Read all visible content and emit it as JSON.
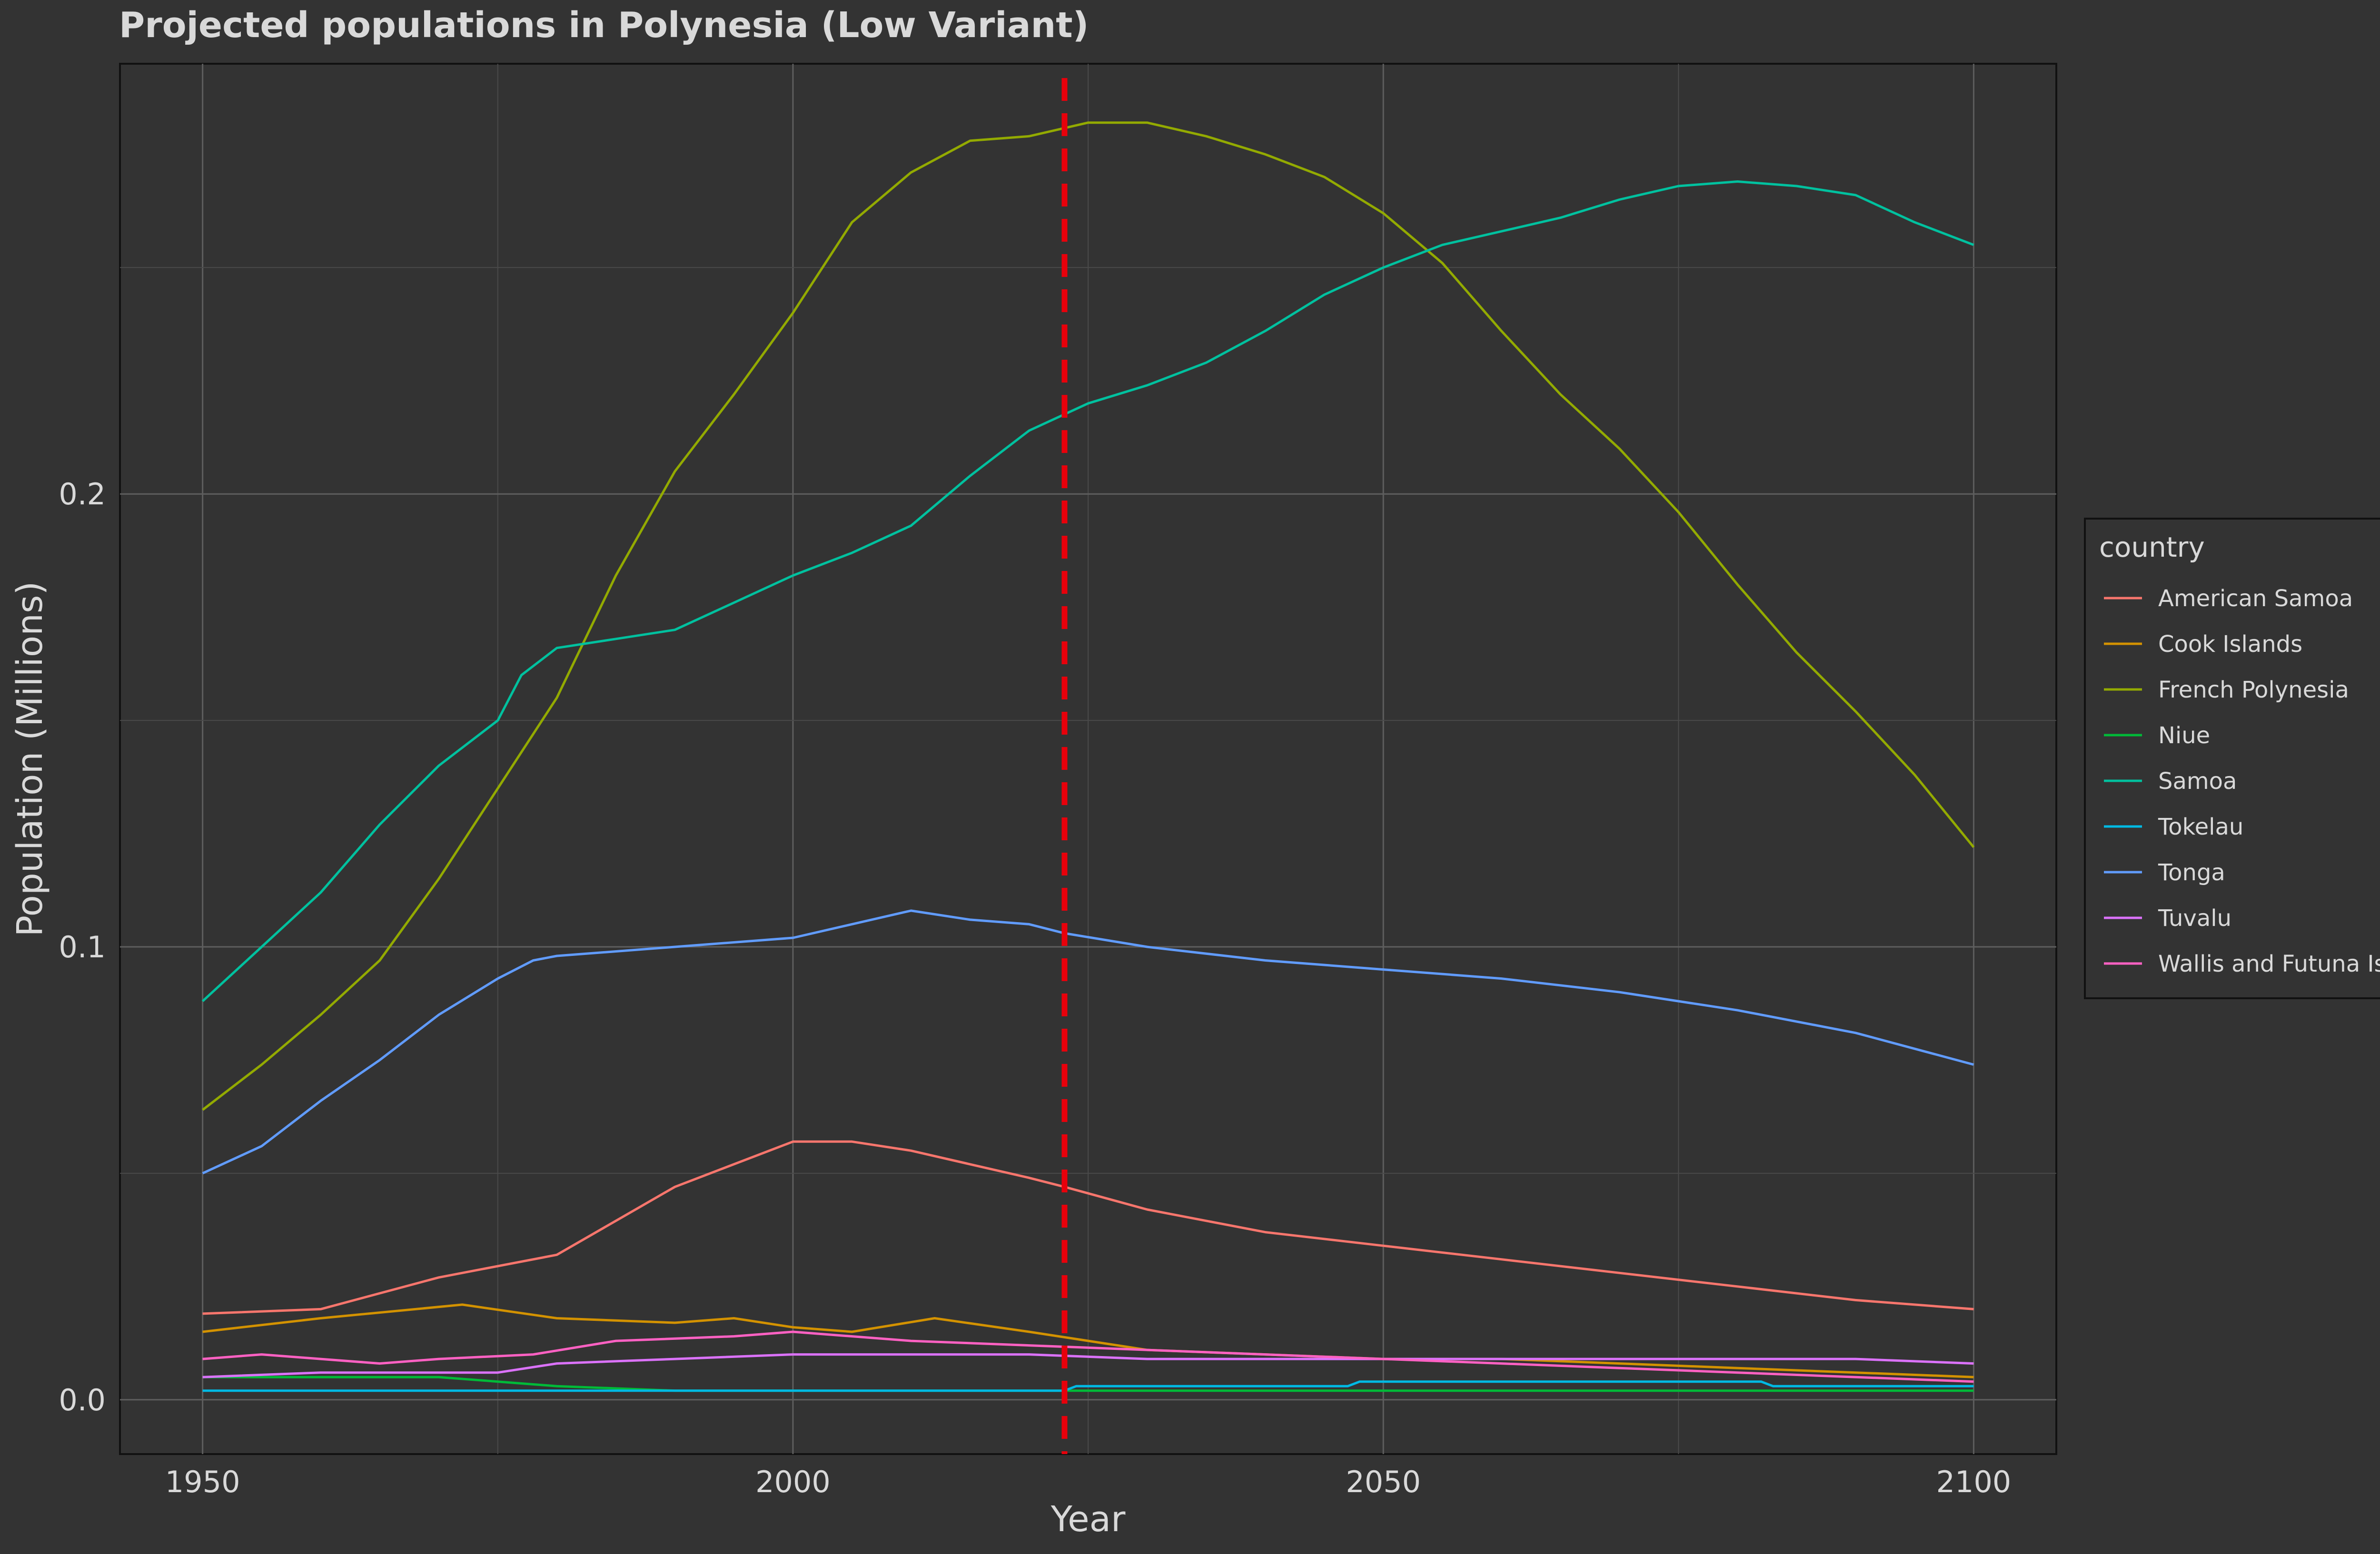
{
  "chart_data": {
    "type": "line",
    "title": "Projected populations in Polynesia (Low Variant)",
    "xlabel": "Year",
    "ylabel": "Population (Millions)",
    "xlim": [
      1943,
      2107
    ],
    "ylim": [
      -0.012,
      0.295
    ],
    "x_ticks": [
      1950,
      2000,
      2050,
      2100
    ],
    "y_ticks": [
      0.0,
      0.1,
      0.2
    ],
    "grid": true,
    "legend": {
      "title": "country",
      "placement": "right"
    },
    "reference_line": {
      "x": 2023,
      "style": "dashed",
      "color": "#e8000b"
    },
    "series": [
      {
        "name": "American Samoa",
        "color": "#f8766d",
        "points": [
          [
            1950,
            0.019
          ],
          [
            1960,
            0.02
          ],
          [
            1970,
            0.027
          ],
          [
            1980,
            0.032
          ],
          [
            1990,
            0.047
          ],
          [
            2000,
            0.057
          ],
          [
            2005,
            0.057
          ],
          [
            2010,
            0.055
          ],
          [
            2015,
            0.052
          ],
          [
            2020,
            0.049
          ],
          [
            2023,
            0.047
          ],
          [
            2030,
            0.042
          ],
          [
            2040,
            0.037
          ],
          [
            2050,
            0.034
          ],
          [
            2060,
            0.031
          ],
          [
            2070,
            0.028
          ],
          [
            2080,
            0.025
          ],
          [
            2090,
            0.022
          ],
          [
            2100,
            0.02
          ]
        ]
      },
      {
        "name": "Cook Islands",
        "color": "#d39200",
        "points": [
          [
            1950,
            0.015
          ],
          [
            1960,
            0.018
          ],
          [
            1972,
            0.021
          ],
          [
            1980,
            0.018
          ],
          [
            1990,
            0.017
          ],
          [
            1995,
            0.018
          ],
          [
            2000,
            0.016
          ],
          [
            2005,
            0.015
          ],
          [
            2012,
            0.018
          ],
          [
            2020,
            0.015
          ],
          [
            2030,
            0.011
          ],
          [
            2040,
            0.01
          ],
          [
            2050,
            0.009
          ],
          [
            2060,
            0.009
          ],
          [
            2070,
            0.008
          ],
          [
            2080,
            0.007
          ],
          [
            2090,
            0.006
          ],
          [
            2100,
            0.005
          ]
        ]
      },
      {
        "name": "French Polynesia",
        "color": "#93aa00",
        "points": [
          [
            1950,
            0.064
          ],
          [
            1955,
            0.074
          ],
          [
            1960,
            0.085
          ],
          [
            1965,
            0.097
          ],
          [
            1970,
            0.115
          ],
          [
            1975,
            0.135
          ],
          [
            1980,
            0.155
          ],
          [
            1985,
            0.182
          ],
          [
            1990,
            0.205
          ],
          [
            1995,
            0.222
          ],
          [
            2000,
            0.24
          ],
          [
            2005,
            0.26
          ],
          [
            2010,
            0.271
          ],
          [
            2015,
            0.278
          ],
          [
            2020,
            0.279
          ],
          [
            2025,
            0.282
          ],
          [
            2030,
            0.282
          ],
          [
            2035,
            0.279
          ],
          [
            2040,
            0.275
          ],
          [
            2045,
            0.27
          ],
          [
            2050,
            0.262
          ],
          [
            2055,
            0.251
          ],
          [
            2060,
            0.236
          ],
          [
            2065,
            0.222
          ],
          [
            2070,
            0.21
          ],
          [
            2075,
            0.196
          ],
          [
            2080,
            0.18
          ],
          [
            2085,
            0.165
          ],
          [
            2090,
            0.152
          ],
          [
            2095,
            0.138
          ],
          [
            2100,
            0.122
          ]
        ]
      },
      {
        "name": "Niue",
        "color": "#00ba38",
        "points": [
          [
            1950,
            0.005
          ],
          [
            1960,
            0.005
          ],
          [
            1970,
            0.005
          ],
          [
            1975,
            0.004
          ],
          [
            1980,
            0.003
          ],
          [
            1990,
            0.002
          ],
          [
            2000,
            0.002
          ],
          [
            2050,
            0.002
          ],
          [
            2100,
            0.002
          ]
        ]
      },
      {
        "name": "Samoa",
        "color": "#00c19f",
        "points": [
          [
            1950,
            0.088
          ],
          [
            1955,
            0.1
          ],
          [
            1960,
            0.112
          ],
          [
            1965,
            0.127
          ],
          [
            1970,
            0.14
          ],
          [
            1975,
            0.15
          ],
          [
            1977,
            0.16
          ],
          [
            1980,
            0.166
          ],
          [
            1985,
            0.168
          ],
          [
            1990,
            0.17
          ],
          [
            1995,
            0.176
          ],
          [
            2000,
            0.182
          ],
          [
            2005,
            0.187
          ],
          [
            2010,
            0.193
          ],
          [
            2015,
            0.204
          ],
          [
            2020,
            0.214
          ],
          [
            2025,
            0.22
          ],
          [
            2030,
            0.224
          ],
          [
            2035,
            0.229
          ],
          [
            2040,
            0.236
          ],
          [
            2045,
            0.244
          ],
          [
            2050,
            0.25
          ],
          [
            2055,
            0.255
          ],
          [
            2060,
            0.258
          ],
          [
            2065,
            0.261
          ],
          [
            2070,
            0.265
          ],
          [
            2075,
            0.268
          ],
          [
            2080,
            0.269
          ],
          [
            2085,
            0.268
          ],
          [
            2090,
            0.266
          ],
          [
            2095,
            0.26
          ],
          [
            2100,
            0.255
          ]
        ]
      },
      {
        "name": "Tokelau",
        "color": "#00b9e3",
        "points": [
          [
            1950,
            0.002
          ],
          [
            2000,
            0.002
          ],
          [
            2023,
            0.002
          ],
          [
            2024,
            0.003
          ],
          [
            2047,
            0.003
          ],
          [
            2048,
            0.004
          ],
          [
            2082,
            0.004
          ],
          [
            2083,
            0.003
          ],
          [
            2100,
            0.003
          ]
        ]
      },
      {
        "name": "Tonga",
        "color": "#619cff",
        "points": [
          [
            1950,
            0.05
          ],
          [
            1955,
            0.056
          ],
          [
            1960,
            0.066
          ],
          [
            1965,
            0.075
          ],
          [
            1970,
            0.085
          ],
          [
            1975,
            0.093
          ],
          [
            1978,
            0.097
          ],
          [
            1980,
            0.098
          ],
          [
            1990,
            0.1
          ],
          [
            2000,
            0.102
          ],
          [
            2005,
            0.105
          ],
          [
            2010,
            0.108
          ],
          [
            2015,
            0.106
          ],
          [
            2020,
            0.105
          ],
          [
            2023,
            0.103
          ],
          [
            2030,
            0.1
          ],
          [
            2040,
            0.097
          ],
          [
            2050,
            0.095
          ],
          [
            2060,
            0.093
          ],
          [
            2070,
            0.09
          ],
          [
            2080,
            0.086
          ],
          [
            2090,
            0.081
          ],
          [
            2100,
            0.074
          ]
        ]
      },
      {
        "name": "Tuvalu",
        "color": "#db72fb",
        "points": [
          [
            1950,
            0.005
          ],
          [
            1960,
            0.006
          ],
          [
            1975,
            0.006
          ],
          [
            1980,
            0.008
          ],
          [
            1990,
            0.009
          ],
          [
            2000,
            0.01
          ],
          [
            2010,
            0.01
          ],
          [
            2020,
            0.01
          ],
          [
            2030,
            0.009
          ],
          [
            2050,
            0.009
          ],
          [
            2070,
            0.009
          ],
          [
            2090,
            0.009
          ],
          [
            2100,
            0.008
          ]
        ]
      },
      {
        "name": "Wallis and Futuna Islands",
        "color": "#ff61c3",
        "points": [
          [
            1950,
            0.009
          ],
          [
            1955,
            0.01
          ],
          [
            1960,
            0.009
          ],
          [
            1965,
            0.008
          ],
          [
            1970,
            0.009
          ],
          [
            1978,
            0.01
          ],
          [
            1985,
            0.013
          ],
          [
            1995,
            0.014
          ],
          [
            2000,
            0.015
          ],
          [
            2010,
            0.013
          ],
          [
            2020,
            0.012
          ],
          [
            2030,
            0.011
          ],
          [
            2040,
            0.01
          ],
          [
            2050,
            0.009
          ],
          [
            2060,
            0.008
          ],
          [
            2070,
            0.007
          ],
          [
            2080,
            0.006
          ],
          [
            2090,
            0.005
          ],
          [
            2100,
            0.004
          ]
        ]
      }
    ]
  }
}
